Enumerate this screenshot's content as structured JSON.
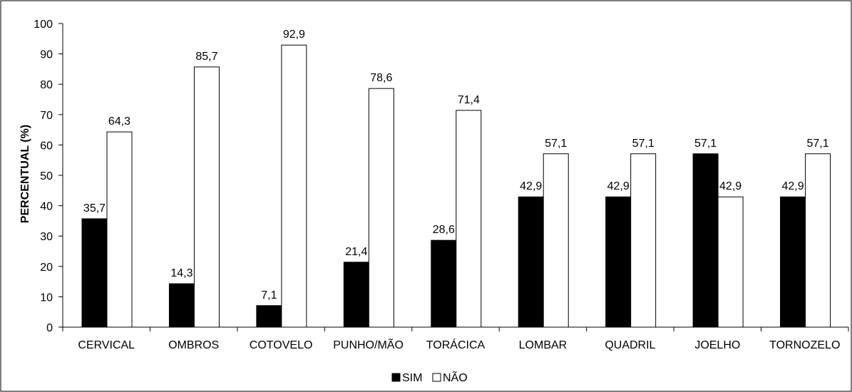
{
  "chart_data": {
    "type": "bar",
    "ylabel": "PERCENTUAL (%)",
    "xlabel": "",
    "ylim": [
      0,
      100
    ],
    "yticks": [
      0,
      10,
      20,
      30,
      40,
      50,
      60,
      70,
      80,
      90,
      100
    ],
    "categories": [
      "CERVICAL",
      "OMBROS",
      "COTOVELO",
      "PUNHO/MÃO",
      "TORÁCICA",
      "LOMBAR",
      "QUADRIL",
      "JOELHO",
      "TORNOZELO"
    ],
    "series": [
      {
        "name": "SIM",
        "color": "#000000",
        "values": [
          35.7,
          14.3,
          7.1,
          21.4,
          28.6,
          42.9,
          42.9,
          57.1,
          42.9
        ],
        "labels": [
          "35,7",
          "14,3",
          "7,1",
          "21,4",
          "28,6",
          "42,9",
          "42,9",
          "57,1",
          "42,9"
        ]
      },
      {
        "name": "NÃO",
        "color": "#ffffff",
        "values": [
          64.3,
          85.7,
          92.9,
          78.6,
          71.4,
          57.1,
          57.1,
          42.9,
          57.1
        ],
        "labels": [
          "64,3",
          "85,7",
          "92,9",
          "78,6",
          "71,4",
          "57,1",
          "57,1",
          "42,9",
          "57,1"
        ]
      }
    ],
    "legend": "bottom",
    "grid": false
  }
}
